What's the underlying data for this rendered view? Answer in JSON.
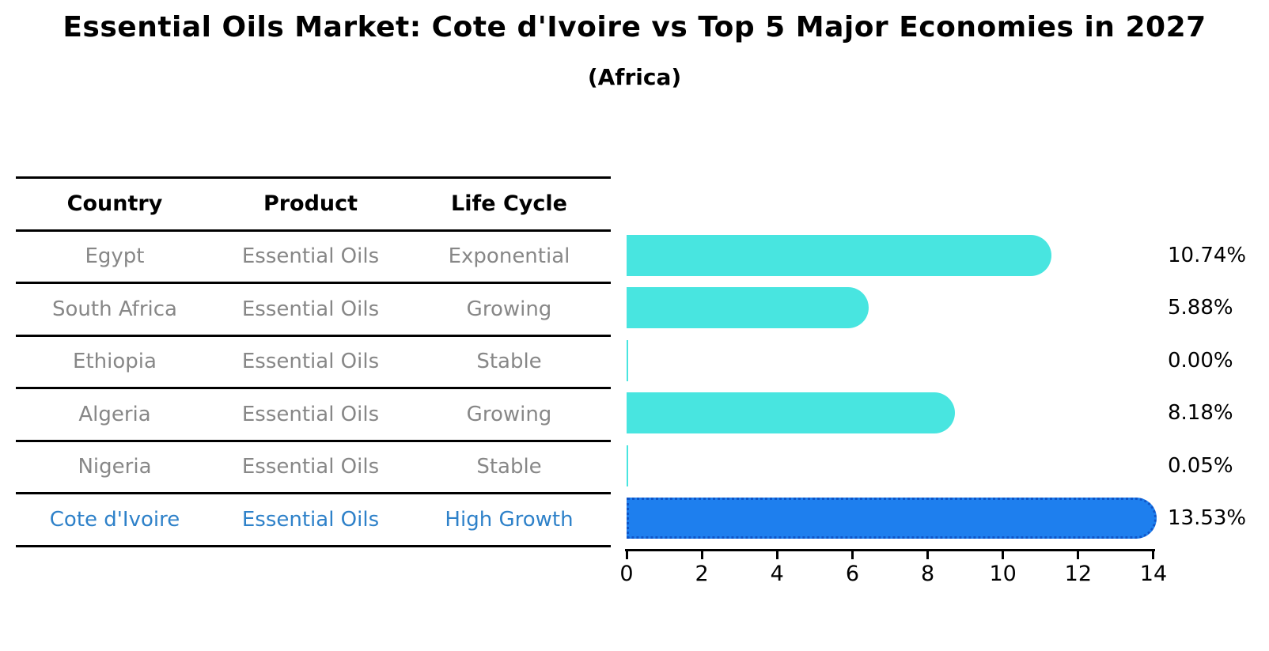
{
  "title": "Essential Oils Market: Cote d'Ivoire vs Top 5 Major Economies in 2027",
  "subtitle": "(Africa)",
  "table": {
    "headers": [
      "Country",
      "Product",
      "Life Cycle"
    ],
    "rows": [
      {
        "country": "Egypt",
        "product": "Essential Oils",
        "life_cycle": "Exponential",
        "highlight": false
      },
      {
        "country": "South Africa",
        "product": "Essential Oils",
        "life_cycle": "Growing",
        "highlight": false
      },
      {
        "country": "Ethiopia",
        "product": "Essential Oils",
        "life_cycle": "Stable",
        "highlight": false
      },
      {
        "country": "Algeria",
        "product": "Essential Oils",
        "life_cycle": "Growing",
        "highlight": false
      },
      {
        "country": "Nigeria",
        "product": "Essential Oils",
        "life_cycle": "Stable",
        "highlight": false
      },
      {
        "country": "Cote d'Ivoire",
        "product": "Essential Oils",
        "life_cycle": "High Growth",
        "highlight": true
      }
    ]
  },
  "chart_data": {
    "type": "bar",
    "orientation": "horizontal",
    "title": "Essential Oils Market: Cote d'Ivoire vs Top 5 Major Economies in 2027",
    "subtitle": "(Africa)",
    "categories": [
      "Egypt",
      "South Africa",
      "Ethiopia",
      "Algeria",
      "Nigeria",
      "Cote d'Ivoire"
    ],
    "values": [
      10.74,
      5.88,
      0.0,
      8.18,
      0.05,
      13.53
    ],
    "value_labels": [
      "10.74%",
      "5.88%",
      "0.00%",
      "8.18%",
      "0.05%",
      "13.53%"
    ],
    "unit": "percent",
    "xlim": [
      0,
      14
    ],
    "x_ticks": [
      0,
      2,
      4,
      6,
      8,
      10,
      12,
      14
    ],
    "grid": false,
    "legend": "none",
    "highlight_index": 5,
    "bar_color": "#48e5e0",
    "highlight_bar_color": "#1e7fee",
    "highlight_border_color": "#0f55c8",
    "highlight_text_color": "#2e81c9",
    "table_text_color": "#878787"
  }
}
